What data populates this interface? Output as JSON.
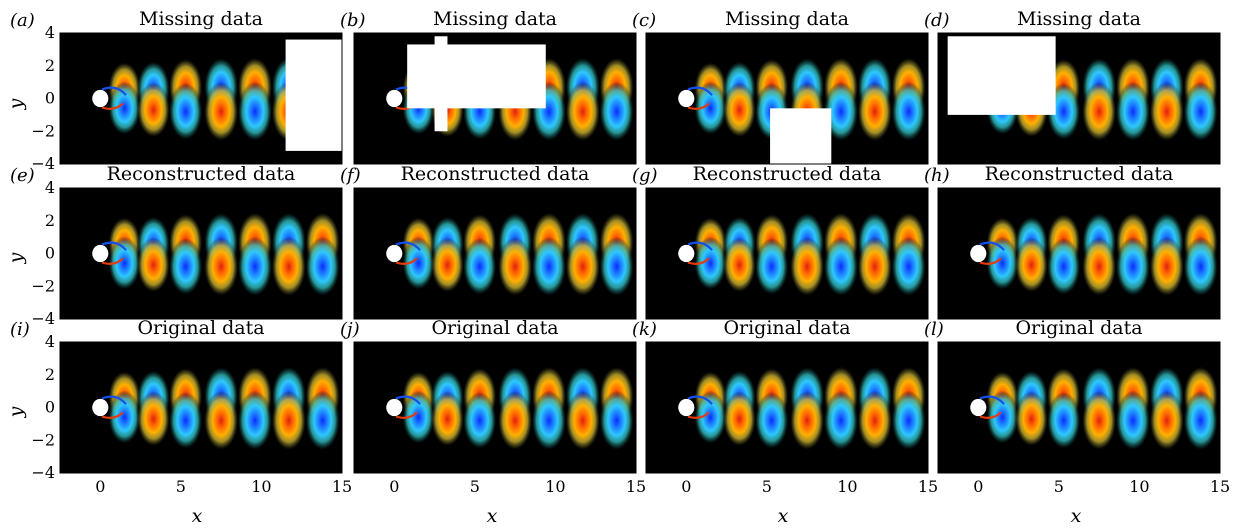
{
  "figure": {
    "rows": [
      {
        "title": "Missing data",
        "panels": [
          "(a)",
          "(b)",
          "(c)",
          "(d)"
        ]
      },
      {
        "title": "Reconstructed data",
        "panels": [
          "(e)",
          "(f)",
          "(g)",
          "(h)"
        ]
      },
      {
        "title": "Original data",
        "panels": [
          "(i)",
          "(j)",
          "(k)",
          "(l)"
        ]
      }
    ],
    "xlabel": "x",
    "ylabel": "y",
    "xticks": [
      "0",
      "5",
      "10",
      "15"
    ],
    "yticks": [
      "4",
      "2",
      "0",
      "−2",
      "−4"
    ],
    "colors": {
      "background": "#000000",
      "positive_core": "#e83a0a",
      "positive_mid": "#ff9a00",
      "positive_outer": "#e8d53a",
      "negative_core": "#1450f0",
      "negative_mid": "#2aa8ff",
      "negative_outer": "#40e0e8",
      "cylinder": "#ffffff",
      "mask": "#ffffff"
    }
  },
  "chart_data": {
    "type": "heatmap",
    "description_units": "x and y in cylinder diameters",
    "xlim": [
      -2.5,
      15
    ],
    "ylim": [
      -4,
      4
    ],
    "cylinder_center": [
      0,
      0
    ],
    "panels": [
      {
        "label": "(a)",
        "title": "Missing data",
        "masks": [
          {
            "x": [
              11.5,
              15
            ],
            "y": [
              -3.2,
              3.6
            ]
          }
        ]
      },
      {
        "label": "(b)",
        "title": "Missing data",
        "masks": [
          {
            "x": [
              0.8,
              9.4
            ],
            "y": [
              -0.6,
              3.3
            ]
          },
          {
            "x": [
              2.5,
              3.3
            ],
            "y": [
              -2,
              3.8
            ]
          }
        ]
      },
      {
        "label": "(c)",
        "title": "Missing data",
        "masks": [
          {
            "x": [
              5.2,
              9.0
            ],
            "y": [
              -4,
              -0.6
            ]
          }
        ]
      },
      {
        "label": "(d)",
        "title": "Missing data",
        "masks": [
          {
            "x": [
              -1.9,
              4.8
            ],
            "y": [
              -1.0,
              3.8
            ]
          }
        ]
      },
      {
        "label": "(e)",
        "title": "Reconstructed data",
        "masks": []
      },
      {
        "label": "(f)",
        "title": "Reconstructed data",
        "masks": []
      },
      {
        "label": "(g)",
        "title": "Reconstructed data",
        "masks": []
      },
      {
        "label": "(h)",
        "title": "Reconstructed data",
        "masks": []
      },
      {
        "label": "(i)",
        "title": "Original data",
        "masks": []
      },
      {
        "label": "(j)",
        "title": "Original data",
        "masks": []
      },
      {
        "label": "(k)",
        "title": "Original data",
        "masks": []
      },
      {
        "label": "(l)",
        "title": "Original data",
        "masks": []
      }
    ],
    "vortex_modes": [
      {
        "x": 1.5,
        "y": 0.6,
        "sign": 1
      },
      {
        "x": 1.5,
        "y": -0.6,
        "sign": -1
      },
      {
        "x": 3.3,
        "y": 0.6,
        "sign": -1
      },
      {
        "x": 3.3,
        "y": -0.7,
        "sign": 1
      },
      {
        "x": 5.3,
        "y": 0.7,
        "sign": 1
      },
      {
        "x": 5.3,
        "y": -0.8,
        "sign": -1
      },
      {
        "x": 7.5,
        "y": 0.7,
        "sign": -1
      },
      {
        "x": 7.5,
        "y": -0.8,
        "sign": 1
      },
      {
        "x": 9.6,
        "y": 0.7,
        "sign": 1
      },
      {
        "x": 9.6,
        "y": -0.8,
        "sign": -1
      },
      {
        "x": 11.7,
        "y": 0.7,
        "sign": -1
      },
      {
        "x": 11.7,
        "y": -0.8,
        "sign": 1
      },
      {
        "x": 13.8,
        "y": 0.7,
        "sign": 1
      },
      {
        "x": 13.8,
        "y": -0.8,
        "sign": -1
      }
    ]
  }
}
